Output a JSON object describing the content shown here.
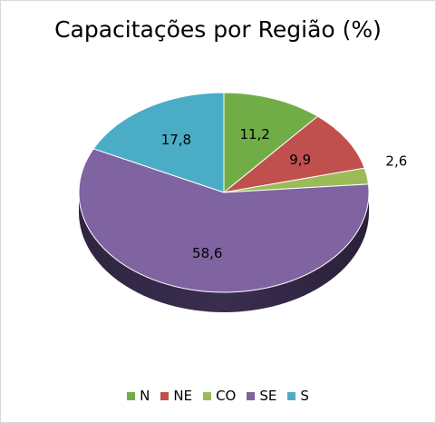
{
  "chart_data": {
    "type": "pie",
    "title": "Capacitações por Região (%)",
    "categories": [
      "N",
      "NE",
      "CO",
      "SE",
      "S"
    ],
    "values": [
      11.2,
      9.9,
      2.6,
      58.6,
      17.8
    ],
    "data_labels": [
      "11,2",
      "9,9",
      "2,6",
      "58,6",
      "17,8"
    ],
    "colors": [
      "#70AD47",
      "#C0504D",
      "#9BBB59",
      "#8064A2",
      "#4BACC6"
    ],
    "legend_position": "bottom",
    "style": "3d-tilted"
  }
}
